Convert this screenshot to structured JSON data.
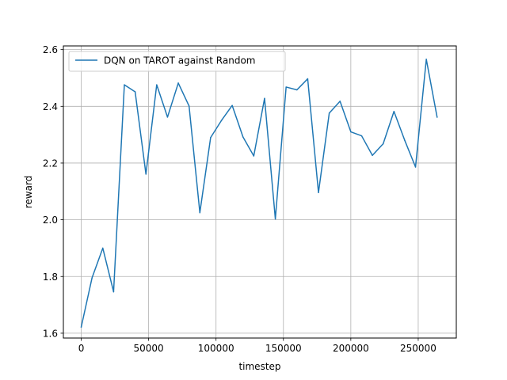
{
  "chart_data": {
    "type": "line",
    "title": "",
    "xlabel": "timestep",
    "ylabel": "reward",
    "xlim": [
      -13250,
      278250
    ],
    "ylim": [
      1.583,
      2.613
    ],
    "xticks": [
      0,
      50000,
      100000,
      150000,
      200000,
      250000
    ],
    "xtick_labels": [
      "0",
      "50000",
      "100000",
      "150000",
      "200000",
      "250000"
    ],
    "yticks": [
      1.6,
      1.8,
      2.0,
      2.2,
      2.4,
      2.6
    ],
    "ytick_labels": [
      "1.6",
      "1.8",
      "2.0",
      "2.2",
      "2.4",
      "2.6"
    ],
    "grid": true,
    "legend_position": "upper-left",
    "series": [
      {
        "name": "DQN on TAROT against Random",
        "color": "#1f77b4",
        "x": [
          0,
          8000,
          16000,
          24000,
          32000,
          40000,
          48000,
          56000,
          64000,
          72000,
          80000,
          88000,
          96000,
          104000,
          112000,
          120000,
          128000,
          136000,
          144000,
          152000,
          160000,
          168000,
          176000,
          184000,
          192000,
          200000,
          208000,
          216000,
          224000,
          232000,
          240000,
          248000,
          256000,
          264000
        ],
        "y": [
          1.622,
          1.795,
          1.9,
          1.746,
          2.476,
          2.451,
          2.161,
          2.476,
          2.362,
          2.482,
          2.401,
          2.025,
          2.29,
          2.35,
          2.403,
          2.292,
          2.225,
          2.428,
          2.003,
          2.468,
          2.458,
          2.497,
          2.096,
          2.376,
          2.418,
          2.31,
          2.296,
          2.227,
          2.268,
          2.382,
          2.28,
          2.186,
          2.566,
          2.362
        ]
      }
    ]
  }
}
